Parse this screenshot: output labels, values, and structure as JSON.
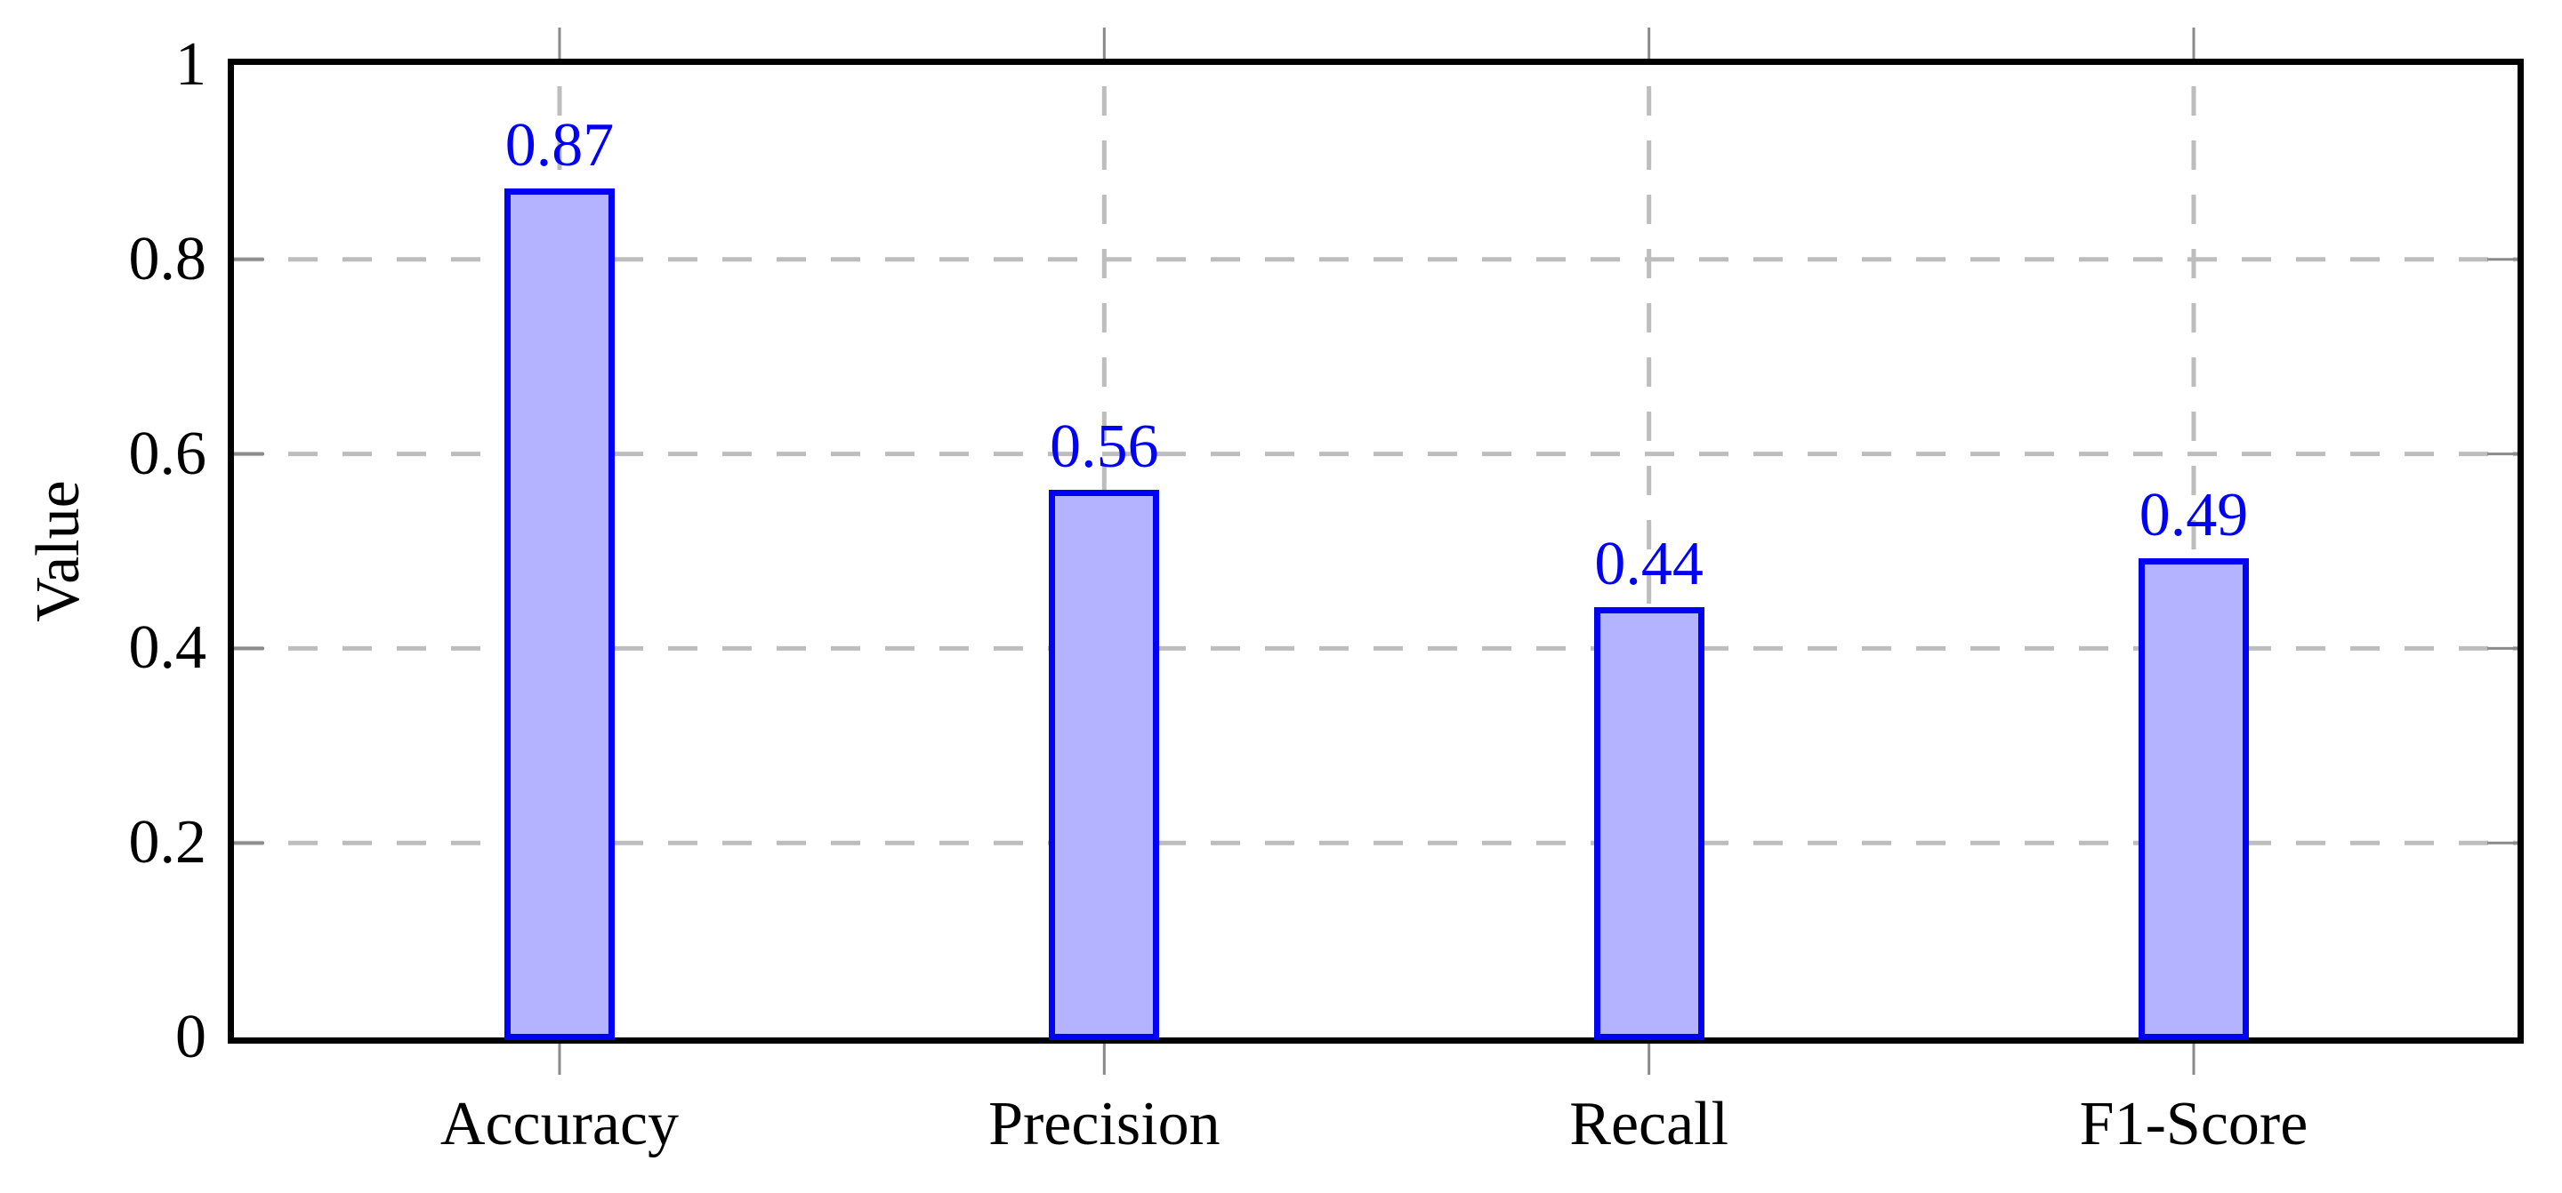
{
  "page": {
    "background": "#FFFFFF"
  },
  "chart_data": {
    "type": "bar",
    "title": "",
    "xlabel": "",
    "ylabel": "Value",
    "categories": [
      "Accuracy",
      "Precision",
      "Recall",
      "F1-Score"
    ],
    "values": [
      0.87,
      0.56,
      0.44,
      0.49
    ],
    "value_labels": [
      "0.87",
      "0.56",
      "0.44",
      "0.49"
    ],
    "ylim": [
      0,
      1
    ],
    "yticks": [
      0,
      0.2,
      0.4,
      0.6,
      0.8,
      1
    ],
    "ytick_labels": [
      "0",
      "0.2",
      "0.4",
      "0.6",
      "0.8",
      "1"
    ],
    "grid": {
      "style": "dashed",
      "horizontal_at": [
        0.2,
        0.4,
        0.6,
        0.8
      ],
      "vertical_at": "category-centers"
    },
    "legend": "none",
    "bar_value_label_position": "above-bar",
    "colors": {
      "bar_fill": "#B3B3FF",
      "bar_border": "#0202F2",
      "value_label": "#0202F2",
      "axis_frame": "#000000",
      "grid_line": "#BDBDBD",
      "tick_mark": "#8A8A8A",
      "text": "#000000",
      "background": "#FFFFFF"
    }
  }
}
